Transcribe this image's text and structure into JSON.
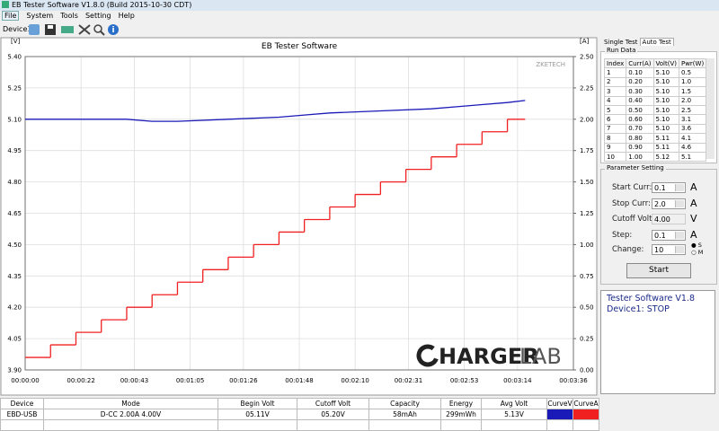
{
  "window": {
    "title": "EB Tester Software V1.8.0 (Build 2015-10-30 CDT)"
  },
  "menu": [
    "File",
    "System",
    "Tools",
    "Setting",
    "Help"
  ],
  "toolbar": {
    "device": "Device1"
  },
  "chart_data": {
    "type": "line",
    "title": "EB Tester Software",
    "y_unit": "[V]",
    "y2_unit": "[A]",
    "watermark": "ZKETECH",
    "xlim": [
      0,
      216
    ],
    "xticks": [
      {
        "value": 0,
        "label": "00:00:00"
      },
      {
        "value": 22,
        "label": "00:00:22"
      },
      {
        "value": 43,
        "label": "00:00:43"
      },
      {
        "value": 65,
        "label": "00:01:05"
      },
      {
        "value": 86,
        "label": "00:01:26"
      },
      {
        "value": 108,
        "label": "00:01:48"
      },
      {
        "value": 130,
        "label": "00:02:10"
      },
      {
        "value": 151,
        "label": "00:02:31"
      },
      {
        "value": 173,
        "label": "00:02:53"
      },
      {
        "value": 194,
        "label": "00:03:14"
      },
      {
        "value": 216,
        "label": "00:03:36"
      }
    ],
    "ylim": [
      3.9,
      5.4
    ],
    "yticks": [
      {
        "value": 3.9,
        "label": "3.90"
      },
      4.05,
      {
        "value": 4.2,
        "label": "4.20"
      },
      4.35,
      {
        "value": 4.5,
        "label": "4.50"
      },
      4.65,
      {
        "value": 4.8,
        "label": "4.80"
      },
      4.95,
      {
        "value": 5.1,
        "label": "5.10"
      },
      5.25,
      {
        "value": 5.4,
        "label": "5.40"
      }
    ],
    "y2lim": [
      0,
      2.5
    ],
    "y2ticks": [
      {
        "value": 0,
        "label": "0.00"
      },
      0.25,
      {
        "value": 0.5,
        "label": "0.50"
      },
      0.75,
      {
        "value": 1,
        "label": "1.00"
      },
      1.25,
      {
        "value": 1.5,
        "label": "1.50"
      },
      1.75,
      {
        "value": 2,
        "label": "2.00"
      },
      2.25,
      {
        "value": 2.5,
        "label": "2.50"
      }
    ],
    "grid": true,
    "series": [
      {
        "color": "#1a1ab8",
        "x": [
          0,
          20,
          40,
          50,
          60,
          80,
          100,
          110,
          120,
          140,
          160,
          170,
          180,
          190,
          197
        ],
        "values": [
          5.1,
          5.1,
          5.1,
          5.09,
          5.09,
          5.1,
          5.11,
          5.12,
          5.13,
          5.14,
          5.15,
          5.16,
          5.17,
          5.18,
          5.19
        ]
      },
      {
        "color": "#f02020",
        "axis": "y2",
        "step": true,
        "bins": [
          0,
          10,
          20,
          30,
          40,
          50,
          60,
          70,
          80,
          90,
          100,
          110,
          120,
          130,
          140,
          150,
          160,
          170,
          180,
          190,
          197
        ],
        "values": [
          0.1,
          0.2,
          0.3,
          0.4,
          0.5,
          0.6,
          0.7,
          0.8,
          0.9,
          1.0,
          1.1,
          1.2,
          1.3,
          1.4,
          1.5,
          1.6,
          1.7,
          1.8,
          1.9,
          2.0
        ]
      }
    ],
    "logo": {
      "main": "HARGER",
      "suffix": "LAB"
    }
  },
  "tabs": [
    "Single Test",
    "Auto Test"
  ],
  "run_data": {
    "title": "Run Data",
    "columns": [
      "Index",
      "Curr(A)",
      "Volt(V)",
      "Pwr(W)"
    ],
    "rows": [
      [
        "1",
        "0.10",
        "5.10",
        "0.5"
      ],
      [
        "2",
        "0.20",
        "5.10",
        "1.0"
      ],
      [
        "3",
        "0.30",
        "5.10",
        "1.5"
      ],
      [
        "4",
        "0.40",
        "5.10",
        "2.0"
      ],
      [
        "5",
        "0.50",
        "5.10",
        "2.5"
      ],
      [
        "6",
        "0.60",
        "5.10",
        "3.1"
      ],
      [
        "7",
        "0.70",
        "5.10",
        "3.6"
      ],
      [
        "8",
        "0.80",
        "5.11",
        "4.1"
      ],
      [
        "9",
        "0.90",
        "5.11",
        "4.6"
      ],
      [
        "10",
        "1.00",
        "5.12",
        "5.1"
      ]
    ]
  },
  "parameters": {
    "title": "Parameter Setting",
    "fields": [
      {
        "label": "Start Curr:",
        "value": "0.1",
        "unit": "A"
      },
      {
        "label": "Stop Curr:",
        "value": "2.0",
        "unit": "A"
      },
      {
        "label": "Cutoff Volt",
        "value": "4.00",
        "unit": "V"
      },
      {
        "label": "Step:",
        "value": "0.1",
        "unit": "A"
      },
      {
        "label": "Change:",
        "value": "10",
        "unit": null
      }
    ],
    "options": [
      "S",
      "M"
    ],
    "button": "Start"
  },
  "status": [
    "Tester Software V1.8",
    "Device1: STOP"
  ],
  "results": {
    "columns": [
      "Device",
      "Mode",
      "Begin Volt",
      "Cutoff Volt",
      "Capacity",
      "Energy",
      "Avg Volt",
      "CurveV",
      "CurveA"
    ],
    "row": [
      "EBD-USB",
      "D-CC 2.00A  4.00V",
      "05.11V",
      "05.20V",
      "58mAh",
      "299mWh",
      "5.13V"
    ]
  }
}
